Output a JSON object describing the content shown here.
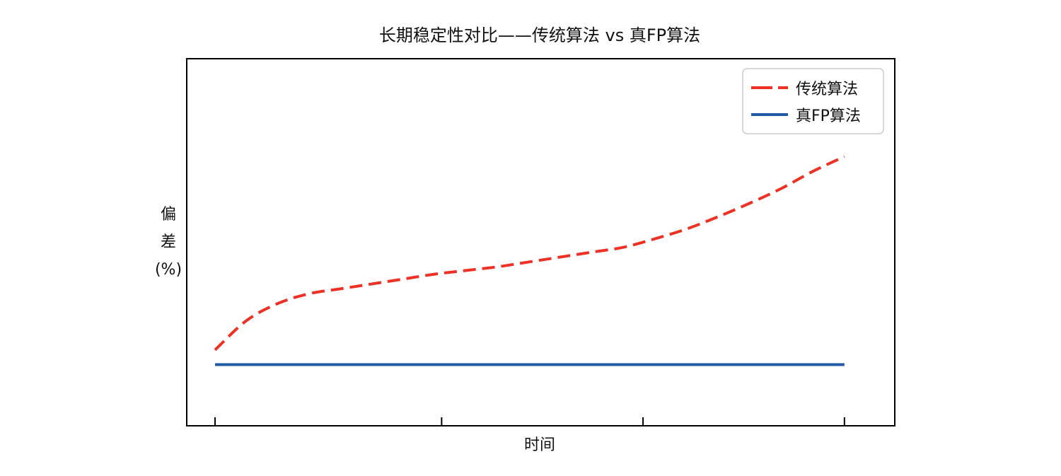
{
  "chart_data": {
    "type": "line",
    "title": "长期稳定性对比——传统算法 vs 真FP算法",
    "xlabel": "时间",
    "ylabel": "偏差(%)",
    "ylabel_lines": [
      "偏",
      "差",
      "(%)"
    ],
    "x": [
      0,
      0.05,
      0.1,
      0.15,
      0.2,
      0.25,
      0.3,
      0.35,
      0.4,
      0.45,
      0.5,
      0.55,
      0.6,
      0.65,
      0.7,
      0.75,
      0.8,
      0.85,
      0.9,
      0.95,
      1.0
    ],
    "xlim": [
      -0.045,
      1.08
    ],
    "ylim": [
      -0.25,
      1.25
    ],
    "grid": false,
    "legend_position": "top-right",
    "tick_labels": {
      "x": [],
      "y": []
    },
    "series": [
      {
        "name": "传统算法",
        "color": "#ee3124",
        "dashed": true,
        "values": [
          0.06,
          0.18,
          0.25,
          0.29,
          0.31,
          0.33,
          0.35,
          0.37,
          0.385,
          0.4,
          0.42,
          0.44,
          0.46,
          0.48,
          0.515,
          0.555,
          0.605,
          0.66,
          0.72,
          0.79,
          0.85
        ]
      },
      {
        "name": "真FP算法",
        "color": "#1f5aa6",
        "dashed": false,
        "values": [
          0.0,
          0.0,
          0.0,
          0.0,
          0.0,
          0.0,
          0.0,
          0.0,
          0.0,
          0.0,
          0.0,
          0.0,
          0.0,
          0.0,
          0.0,
          0.0,
          0.0,
          0.0,
          0.0,
          0.0,
          0.0
        ]
      }
    ]
  }
}
